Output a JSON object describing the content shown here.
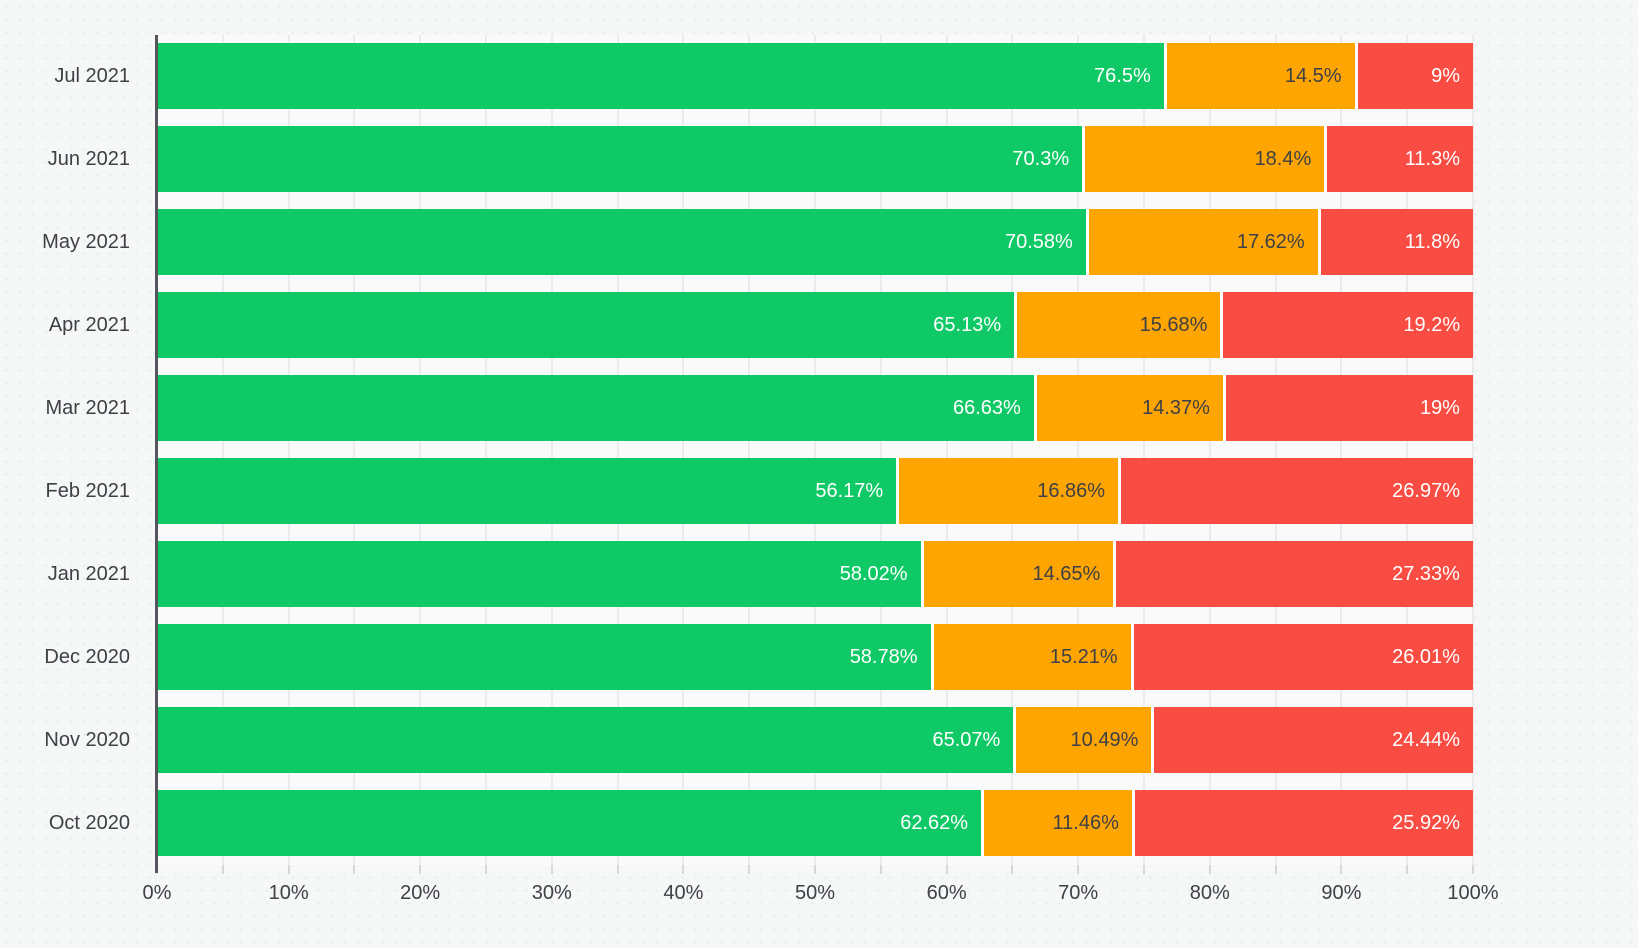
{
  "chart_data": {
    "type": "bar",
    "orientation": "horizontal",
    "stacked": true,
    "title": "",
    "legend": "none",
    "grid": true,
    "categories": [
      "Jul 2021",
      "Jun 2021",
      "May 2021",
      "Apr 2021",
      "Mar 2021",
      "Feb 2021",
      "Jan 2021",
      "Dec 2020",
      "Nov 2020",
      "Oct 2020"
    ],
    "series": [
      {
        "name": "green",
        "color": "#0fc966",
        "label_color": "#ffffff",
        "values": [
          76.5,
          70.3,
          70.58,
          65.13,
          66.63,
          56.17,
          58.02,
          58.78,
          65.07,
          62.62
        ],
        "labels": [
          "76.5%",
          "70.3%",
          "70.58%",
          "65.13%",
          "66.63%",
          "56.17%",
          "58.02%",
          "58.78%",
          "65.07%",
          "62.62%"
        ]
      },
      {
        "name": "orange",
        "color": "#ffa502",
        "label_color": "#3e4046",
        "values": [
          14.5,
          18.4,
          17.62,
          15.68,
          14.37,
          16.86,
          14.65,
          15.21,
          10.49,
          11.46
        ],
        "labels": [
          "14.5%",
          "18.4%",
          "17.62%",
          "15.68%",
          "14.37%",
          "16.86%",
          "14.65%",
          "15.21%",
          "10.49%",
          "11.46%"
        ]
      },
      {
        "name": "red",
        "color": "#f94c43",
        "label_color": "#ffffff",
        "values": [
          9,
          11.3,
          11.8,
          19.2,
          19,
          26.97,
          27.33,
          26.01,
          24.44,
          25.92
        ],
        "labels": [
          "9%",
          "11.3%",
          "11.8%",
          "19.2%",
          "19%",
          "26.97%",
          "27.33%",
          "26.01%",
          "24.44%",
          "25.92%"
        ]
      }
    ],
    "x_axis": {
      "tick_labels": [
        "0%",
        "10%",
        "20%",
        "30%",
        "40%",
        "50%",
        "60%",
        "70%",
        "80%",
        "90%",
        "100%"
      ],
      "min": 0,
      "max": 100,
      "major_step": 10,
      "minor_grid_step": 5
    }
  },
  "colors": {
    "background": "#f6f7f7",
    "plot_background": "#fafafa",
    "gridline": "#ebebed",
    "axis_line": "#54555d",
    "tick": "#d6d7da",
    "axis_label": "#3e4046",
    "segment_divider": "#ffffff"
  }
}
